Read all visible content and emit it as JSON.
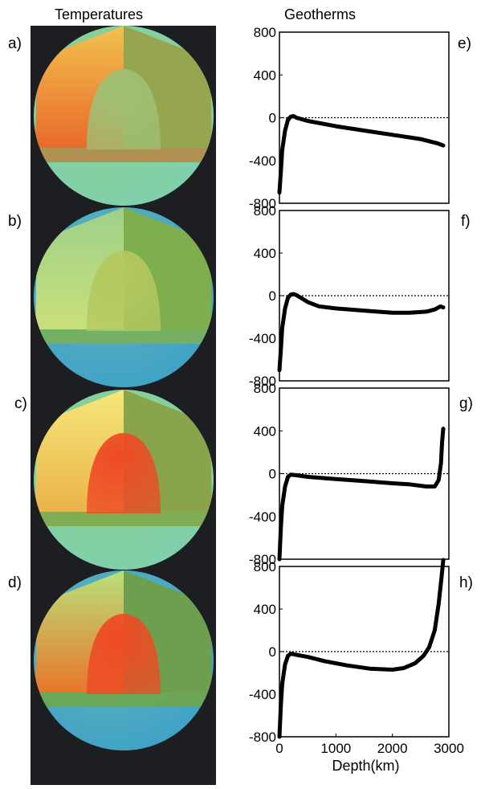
{
  "headers": {
    "left": "Temperatures",
    "right": "Geotherms"
  },
  "panel_labels": {
    "a": "a)",
    "b": "b)",
    "c": "c)",
    "d": "d)",
    "e": "e)",
    "f": "f)",
    "g": "g)",
    "h": "h)"
  },
  "spheres": [
    {
      "id": "a",
      "shell_color": "#8ccf8a",
      "wall_color": "#f2c24f",
      "wall_color2": "#e96a2a",
      "right_wall": "#96a64f",
      "floor": "#b48a4a",
      "core": "#9fc074",
      "shell_bottom": "#7fd0b0"
    },
    {
      "id": "b",
      "shell_color": "#5fb6b8",
      "wall_color": "#9ed08a",
      "wall_color2": "#c9e07a",
      "right_wall": "#7fae4f",
      "floor": "#79b05a",
      "core": "#b4c95f",
      "shell_bottom": "#3ea0c7"
    },
    {
      "id": "c",
      "shell_color": "#8ccf8a",
      "wall_color": "#f6e77a",
      "wall_color2": "#eab44a",
      "right_wall": "#8aa44b",
      "floor": "#7ea84a",
      "core": "#ee4a24",
      "shell_bottom": "#7fd0b0"
    },
    {
      "id": "d",
      "shell_color": "#5fb6b8",
      "wall_color": "#b9e07a",
      "wall_color2": "#e9762a",
      "right_wall": "#6e9f4e",
      "floor": "#6ea64a",
      "core": "#ee4a24",
      "shell_bottom": "#3ea0c7"
    }
  ],
  "chart_data": [
    {
      "panel": "e",
      "type": "line",
      "xlim": [
        0,
        3000
      ],
      "ylim": [
        -800,
        800
      ],
      "yticks": [
        800,
        400,
        0,
        -400,
        -800
      ],
      "x": [
        0,
        25,
        50,
        100,
        150,
        200,
        250,
        300,
        500,
        1000,
        1500,
        2000,
        2500,
        2800,
        2900
      ],
      "y": [
        -700,
        -500,
        -300,
        -120,
        -20,
        10,
        15,
        0,
        -30,
        -80,
        -120,
        -160,
        -200,
        -240,
        -260
      ]
    },
    {
      "panel": "f",
      "type": "line",
      "xlim": [
        0,
        3000
      ],
      "ylim": [
        -800,
        800
      ],
      "yticks": [
        800,
        400,
        0,
        -400,
        -800
      ],
      "x": [
        0,
        25,
        50,
        100,
        150,
        200,
        250,
        300,
        500,
        700,
        1000,
        1500,
        2000,
        2300,
        2600,
        2750,
        2850,
        2900
      ],
      "y": [
        -700,
        -500,
        -300,
        -120,
        -20,
        10,
        15,
        5,
        -60,
        -100,
        -120,
        -140,
        -160,
        -160,
        -150,
        -130,
        -100,
        -110
      ]
    },
    {
      "panel": "g",
      "type": "line",
      "xlim": [
        0,
        3000
      ],
      "ylim": [
        -800,
        800
      ],
      "yticks": [
        800,
        400,
        0,
        -400,
        -800
      ],
      "x": [
        0,
        25,
        50,
        100,
        150,
        200,
        300,
        500,
        1000,
        1500,
        2000,
        2300,
        2600,
        2750,
        2820,
        2860,
        2880,
        2900
      ],
      "y": [
        -800,
        -500,
        -300,
        -120,
        -30,
        -10,
        -15,
        -30,
        -50,
        -70,
        -90,
        -100,
        -120,
        -120,
        -60,
        100,
        300,
        420
      ]
    },
    {
      "panel": "h",
      "type": "line",
      "xlim": [
        0,
        3000
      ],
      "ylim": [
        -800,
        800
      ],
      "yticks": [
        800,
        400,
        0,
        -400,
        -800
      ],
      "xticks": [
        0,
        1000,
        2000,
        3000
      ],
      "xlabel": "Depth(km)",
      "x": [
        0,
        25,
        50,
        100,
        150,
        200,
        300,
        500,
        800,
        1200,
        1600,
        2000,
        2200,
        2400,
        2550,
        2650,
        2750,
        2820,
        2870,
        2900
      ],
      "y": [
        -800,
        -500,
        -300,
        -120,
        -40,
        -20,
        -30,
        -50,
        -90,
        -130,
        -160,
        -170,
        -155,
        -110,
        -40,
        40,
        200,
        450,
        700,
        860
      ]
    }
  ]
}
